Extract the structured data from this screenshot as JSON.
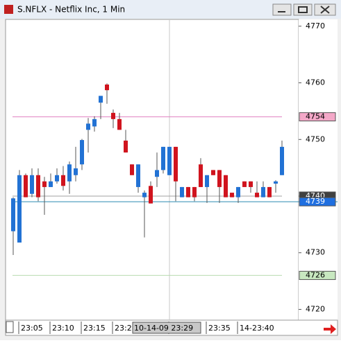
{
  "window": {
    "title": "S.NFLX - Netflix Inc, 1 Min"
  },
  "chart_data": {
    "type": "candlestick",
    "categories": [
      null,
      "23:05",
      null,
      null,
      null,
      null,
      "23:10",
      null,
      null,
      null,
      null,
      "23:15",
      null,
      null,
      null,
      null,
      "23:2",
      null,
      null,
      null,
      null,
      null,
      null,
      null,
      null,
      "10-14-09 23:29",
      null,
      null,
      null,
      null,
      null,
      "23:35",
      null,
      null,
      null,
      null,
      "14-23:40",
      null,
      null,
      null,
      null,
      null,
      null,
      null
    ],
    "open": [
      4733.8,
      4731.8,
      4743.7,
      4740.4,
      4743.7,
      4742.6,
      4741.6,
      4742.6,
      4743.7,
      4742.6,
      4743.7,
      4745.6,
      4751.7,
      4752.3,
      4756.5,
      4759.7,
      4754.7,
      4753.6,
      4749.8,
      4745.6,
      4741.6,
      4739.8,
      4741.8,
      4743.4,
      4744.6,
      4743.7,
      4748.7,
      4739.8,
      4741.6,
      4741.6,
      4745.6,
      4741.6,
      4744.6,
      4744.6,
      4743.7,
      4740.6,
      4739.8,
      4742.6,
      4742.6,
      4740.6,
      4739.8,
      4741.6,
      4742.2,
      4743.7
    ],
    "high": [
      4739.8,
      4744.6,
      4744.0,
      4744.9,
      4744.9,
      4743.4,
      4744.0,
      4744.9,
      4745.3,
      4746.1,
      4748.7,
      4750.1,
      4753.8,
      4754.1,
      4757.7,
      4759.9,
      4755.3,
      4754.7,
      4751.7,
      4745.6,
      4745.6,
      4741.0,
      4742.6,
      4747.7,
      4748.7,
      4748.7,
      4748.7,
      4741.6,
      4741.6,
      4741.6,
      4746.7,
      4743.7,
      4744.6,
      4744.6,
      4743.7,
      4740.6,
      4741.6,
      4742.6,
      4742.6,
      4742.6,
      4742.6,
      4741.6,
      4742.8,
      4749.8
    ],
    "low": [
      4729.6,
      4731.8,
      4739.8,
      4739.8,
      4739.1,
      4736.7,
      4741.6,
      4742.2,
      4741.0,
      4740.4,
      4742.6,
      4744.6,
      4747.7,
      4751.4,
      4753.6,
      4756.3,
      4752.0,
      4751.7,
      4747.7,
      4743.7,
      4740.6,
      4732.7,
      4738.7,
      4741.6,
      4744.0,
      4743.7,
      4739.1,
      4739.8,
      4739.8,
      4739.1,
      4741.6,
      4738.8,
      4743.7,
      4738.8,
      4739.8,
      4739.8,
      4738.8,
      4741.6,
      4740.6,
      4739.8,
      4739.8,
      4739.8,
      4740.6,
      4743.7
    ],
    "close": [
      4739.6,
      4743.7,
      4739.8,
      4743.7,
      4739.8,
      4741.6,
      4742.6,
      4743.7,
      4741.8,
      4745.6,
      4744.9,
      4749.9,
      4752.8,
      4753.6,
      4757.7,
      4758.7,
      4753.6,
      4751.7,
      4747.7,
      4743.7,
      4745.6,
      4740.6,
      4738.7,
      4744.6,
      4748.7,
      4748.7,
      4742.6,
      4741.6,
      4739.8,
      4739.8,
      4741.6,
      4743.7,
      4743.7,
      4741.6,
      4739.8,
      4739.8,
      4741.6,
      4741.6,
      4741.6,
      4739.8,
      4741.6,
      4739.8,
      4742.6,
      4748.7
    ],
    "up_color": "#2272d4",
    "down_color": "#d0141e",
    "ylim": [
      4718.1,
      4771.2
    ],
    "yticks": [
      4720,
      4730,
      4740,
      4750,
      4760,
      4770
    ],
    "highlight_category": 25,
    "price_lines": [
      {
        "value": 4754,
        "label": "4754",
        "color": "#e080c0",
        "label_bg": "#f4a8c8",
        "label_color": "#000"
      },
      {
        "value": 4740,
        "label": "4740",
        "color": "#a0a0a0",
        "label_bg": "#404040",
        "label_color": "#fff"
      },
      {
        "value": 4739,
        "label": "4739",
        "color": "#2a8ab0",
        "label_bg": "#1f6fe0",
        "label_color": "#fff"
      },
      {
        "value": 4726,
        "label": "4726",
        "color": "#b8dcb0",
        "label_bg": "#c8e8c0",
        "label_color": "#000"
      }
    ]
  }
}
